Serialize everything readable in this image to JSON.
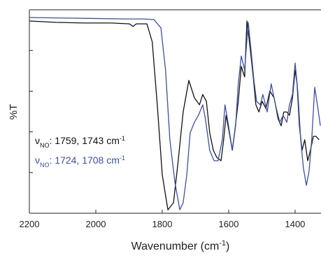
{
  "chart_data": {
    "type": "line",
    "ylabel": "%T",
    "xlabel": {
      "text": "Wavenumber (cm",
      "sup": "-1",
      "end": ")"
    },
    "xlim": [
      2200,
      1322
    ],
    "ylim": [
      0,
      100
    ],
    "xticks": [
      2200,
      2000,
      1800,
      1600,
      1400
    ],
    "yticks": [
      20,
      40,
      60,
      80,
      100
    ],
    "annotations": [
      {
        "symbol": "ν",
        "sub": "NO",
        "text": ": 1759, 1743 cm",
        "sup": "-1",
        "color": "#111111"
      },
      {
        "symbol": "ν",
        "sub": "NO",
        "text": ": 1724, 1708 cm",
        "sup": "-1",
        "color": "#3d4fa8"
      }
    ],
    "series": [
      {
        "color": "#111111",
        "x": [
          2200,
          2120,
          2036,
          1952,
          1899,
          1888,
          1878,
          1846,
          1830,
          1815,
          1800,
          1783,
          1766,
          1752,
          1737,
          1720,
          1703,
          1688,
          1678,
          1667,
          1657,
          1646,
          1636,
          1623,
          1615,
          1608,
          1600,
          1589,
          1581,
          1571,
          1562,
          1552,
          1545,
          1535,
          1526,
          1518,
          1509,
          1499,
          1488,
          1476,
          1463,
          1451,
          1442,
          1434,
          1425,
          1417,
          1408,
          1400,
          1394,
          1387,
          1379,
          1371,
          1362,
          1354,
          1345,
          1337,
          1328
        ],
        "values": [
          94.5,
          93.8,
          93.5,
          93.5,
          93.1,
          91.8,
          93.1,
          93.1,
          84.2,
          53.3,
          18.9,
          1.7,
          5.2,
          25.8,
          49.8,
          65.3,
          56.7,
          53.3,
          58.4,
          55.0,
          39.5,
          30.9,
          27.5,
          25.8,
          36.1,
          48.1,
          41.2,
          30.9,
          41.2,
          55.0,
          72.2,
          67.0,
          94.5,
          80.8,
          67.0,
          53.3,
          49.8,
          55.0,
          51.5,
          60.1,
          56.7,
          46.4,
          43.0,
          49.8,
          49.8,
          48.1,
          56.7,
          70.4,
          63.6,
          43.0,
          30.9,
          36.1,
          25.8,
          30.9,
          37.8,
          37.8,
          36.1
        ]
      },
      {
        "color": "#3d4fa8",
        "x": [
          2200,
          2078,
          1910,
          1857,
          1825,
          1804,
          1790,
          1777,
          1762,
          1747,
          1737,
          1726,
          1716,
          1703,
          1691,
          1678,
          1670,
          1657,
          1644,
          1632,
          1619,
          1611,
          1602,
          1589,
          1579,
          1571,
          1562,
          1552,
          1541,
          1533,
          1524,
          1516,
          1505,
          1497,
          1484,
          1472,
          1459,
          1446,
          1436,
          1425,
          1417,
          1408,
          1400,
          1392,
          1383,
          1375,
          1366,
          1358,
          1350,
          1341,
          1333,
          1324
        ],
        "values": [
          96.2,
          95.9,
          95.5,
          95.5,
          95.2,
          91.1,
          70.4,
          36.1,
          15.5,
          1.7,
          5.2,
          18.9,
          39.5,
          44.7,
          48.1,
          53.3,
          46.4,
          30.9,
          25.8,
          25.8,
          36.1,
          53.3,
          44.7,
          30.9,
          43.0,
          63.6,
          77.3,
          70.4,
          93.8,
          80.8,
          65.3,
          55.0,
          53.3,
          58.4,
          49.8,
          63.6,
          53.3,
          44.7,
          48.1,
          44.7,
          53.3,
          58.4,
          73.9,
          60.1,
          36.1,
          22.3,
          13.7,
          20.6,
          36.1,
          61.9,
          53.3,
          43.0
        ]
      }
    ]
  }
}
